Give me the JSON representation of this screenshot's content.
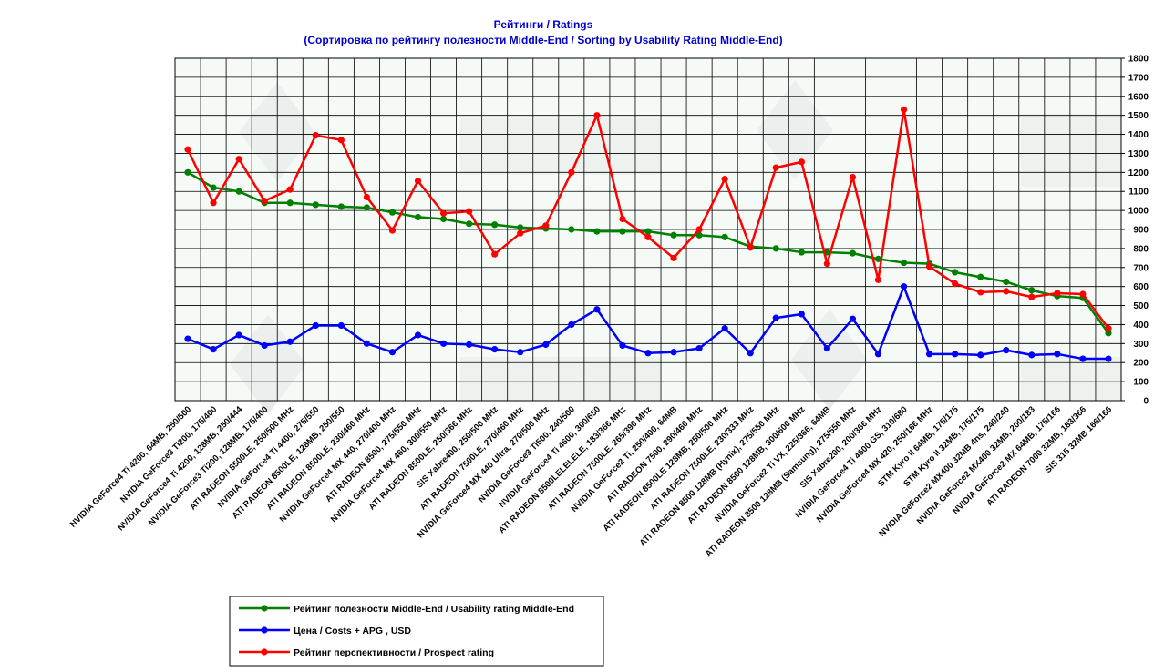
{
  "chart_data": {
    "type": "line",
    "title": "Рейтинги / Ratings",
    "subtitle": "(Сортировка по рейтингу полезности Middle-End / Sorting by Usability Rating Middle-End)",
    "xlabel": "",
    "ylabel": "",
    "ylim": [
      0,
      1800
    ],
    "yticks": [
      0,
      100,
      200,
      300,
      400,
      500,
      600,
      700,
      800,
      900,
      1000,
      1100,
      1200,
      1300,
      1400,
      1500,
      1600,
      1700,
      1800
    ],
    "grid": true,
    "legend_position": "bottom-left",
    "categories": [
      "NVIDIA GeForce4 Ti 4200, 64MB, 250/500",
      "NVIDIA GeForce3 Ti200, 175/400",
      "NVIDIA GeForce4 Ti 4200, 128MB, 250/444",
      "NVIDIA GeForce3 Ti200, 128MB, 175/400",
      "ATI RADEON 8500LE, 250/500 MHz",
      "NVIDIA GeForce4 Ti 4400, 275/550",
      "ATI RADEON 8500LE, 128MB, 250/550",
      "ATI RADEON 8500LE, 230/460 MHz",
      "NVIDIA GeForce4 MX 440, 270/400 MHz",
      "ATI RADEON 8500, 275/550 MHz",
      "NVIDIA GeForce4 MX 460, 300/550 MHz",
      "ATI RADEON 8500LE, 250/366 MHz",
      "SIS Xabre400, 250/500 MHz",
      "ATI RADEON 7500LE, 270/460 MHz",
      "NVIDIA GeForce4 MX 440 Ultra, 270/500 MHz",
      "NVIDIA GeForce3 Ti500, 240/500",
      "NVIDIA GeForce4 Ti 4600, 300/650",
      "ATI RADEON 8500LELELELE, 183/366 MHz",
      "ATI RADEON 7500LE, 265/390 MHz",
      "NVIDIA GeForce2 Ti, 250/400, 64MB",
      "ATI RADEON 7500, 290/460 MHz",
      "ATI RADEON 8500LE 128MB, 250/500 MHz",
      "ATI RADEON 7500LE, 230/333 MHz",
      "ATI RADEON 8500 128MB (Hynix), 275/550 MHz",
      "ATI RADEON 8500 128MB, 300/600 MHz",
      "NVIDIA GeForce2 Ti VX, 225/366, 64MB",
      "ATI RADEON 8500 128MB (Samsung), 275/550 MHz",
      "SIS Xabre200, 200/366 MHz",
      "NVIDIA GeForce4 Ti 4600 GS, 310/680",
      "NVIDIA GeForce4 MX 420, 250/166 MHz",
      "STM Kyro II 64MB, 175/175",
      "STM Kyro II 32MB, 175/175",
      "NVIDIA GeForce2 MX400 32MB 4ns, 240/240",
      "NVIDIA GeForce2 MX400 32MB, 200/183",
      "NVIDIA GeForce2 MX 64MB, 175/166",
      "ATI RADEON 7000 32MB, 183/366",
      "SIS 315 32MB 166/166"
    ],
    "series": [
      {
        "name": "Рейтинг полезности Middle-End / Usability rating Middle-End",
        "color": "#008000",
        "values": [
          1200,
          1120,
          1100,
          1040,
          1040,
          1030,
          1020,
          1015,
          990,
          965,
          955,
          930,
          925,
          910,
          905,
          900,
          890,
          890,
          890,
          870,
          870,
          860,
          810,
          800,
          780,
          780,
          775,
          745,
          725,
          720,
          675,
          650,
          625,
          580,
          550,
          540,
          355
        ]
      },
      {
        "name": "Цена / Costs + APG , USD",
        "color": "#0000ff",
        "values": [
          325,
          270,
          345,
          290,
          310,
          395,
          395,
          300,
          255,
          345,
          300,
          295,
          270,
          255,
          295,
          400,
          480,
          290,
          250,
          255,
          275,
          380,
          250,
          435,
          455,
          275,
          430,
          245,
          600,
          245,
          245,
          240,
          265,
          240,
          245,
          220,
          220
        ]
      },
      {
        "name": "Рейтинг перспективности / Prospect rating",
        "color": "#ff0000",
        "values": [
          1320,
          1040,
          1270,
          1050,
          1110,
          1395,
          1370,
          1070,
          895,
          1155,
          985,
          995,
          770,
          880,
          920,
          1200,
          1500,
          955,
          860,
          750,
          900,
          1165,
          805,
          1225,
          1255,
          720,
          1175,
          635,
          1530,
          705,
          615,
          570,
          575,
          545,
          565,
          560,
          380
        ]
      }
    ]
  }
}
